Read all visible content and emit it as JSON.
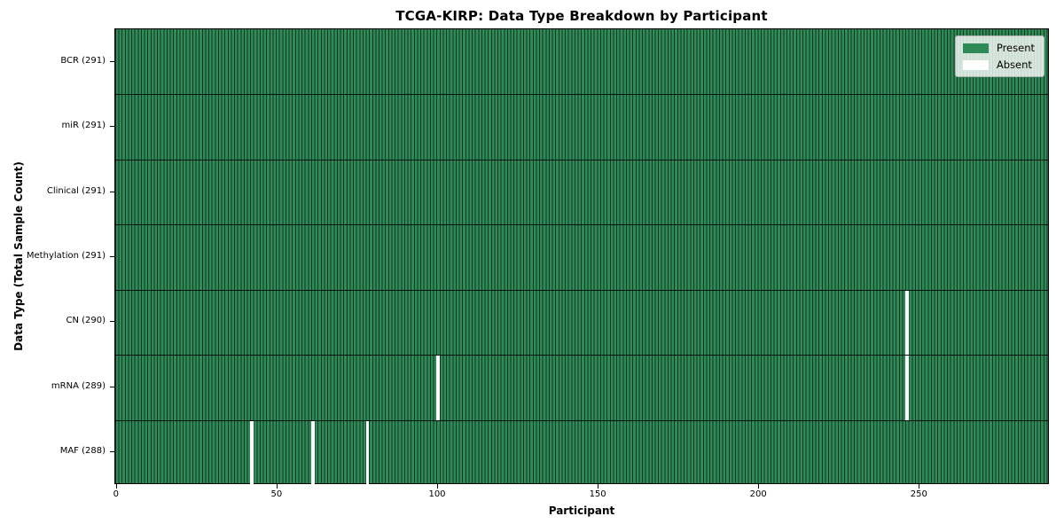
{
  "chart_data": {
    "type": "heatmap",
    "title": "TCGA-KIRP: Data Type Breakdown by Participant",
    "xlabel": "Participant",
    "ylabel": "Data Type (Total Sample Count)",
    "n_participants": 291,
    "x_ticks": [
      0,
      50,
      100,
      150,
      200,
      250
    ],
    "grid": false,
    "rows": [
      {
        "label": "BCR (291)",
        "data_type": "BCR",
        "present_count": 291,
        "absent_participants": []
      },
      {
        "label": "miR (291)",
        "data_type": "miR",
        "present_count": 291,
        "absent_participants": []
      },
      {
        "label": "Clinical (291)",
        "data_type": "Clinical",
        "present_count": 291,
        "absent_participants": []
      },
      {
        "label": "Methylation (291)",
        "data_type": "Methylation",
        "present_count": 291,
        "absent_participants": []
      },
      {
        "label": "CN (290)",
        "data_type": "CN",
        "present_count": 290,
        "absent_participants": [
          246
        ]
      },
      {
        "label": "mRNA (289)",
        "data_type": "mRNA",
        "present_count": 289,
        "absent_participants": [
          100,
          246
        ]
      },
      {
        "label": "MAF (288)",
        "data_type": "MAF",
        "present_count": 288,
        "absent_participants": [
          42,
          61,
          78
        ]
      }
    ],
    "legend": {
      "position": "upper right",
      "items": [
        {
          "label": "Present",
          "color": "#2E8B57"
        },
        {
          "label": "Absent",
          "color": "#FFFFFF"
        }
      ]
    },
    "colors": {
      "present": "#2E8B57",
      "absent": "#FFFFFF",
      "bar_edge": "rgba(0,0,0,0.62)",
      "row_divider": "rgba(0,0,0,0.85)"
    }
  }
}
